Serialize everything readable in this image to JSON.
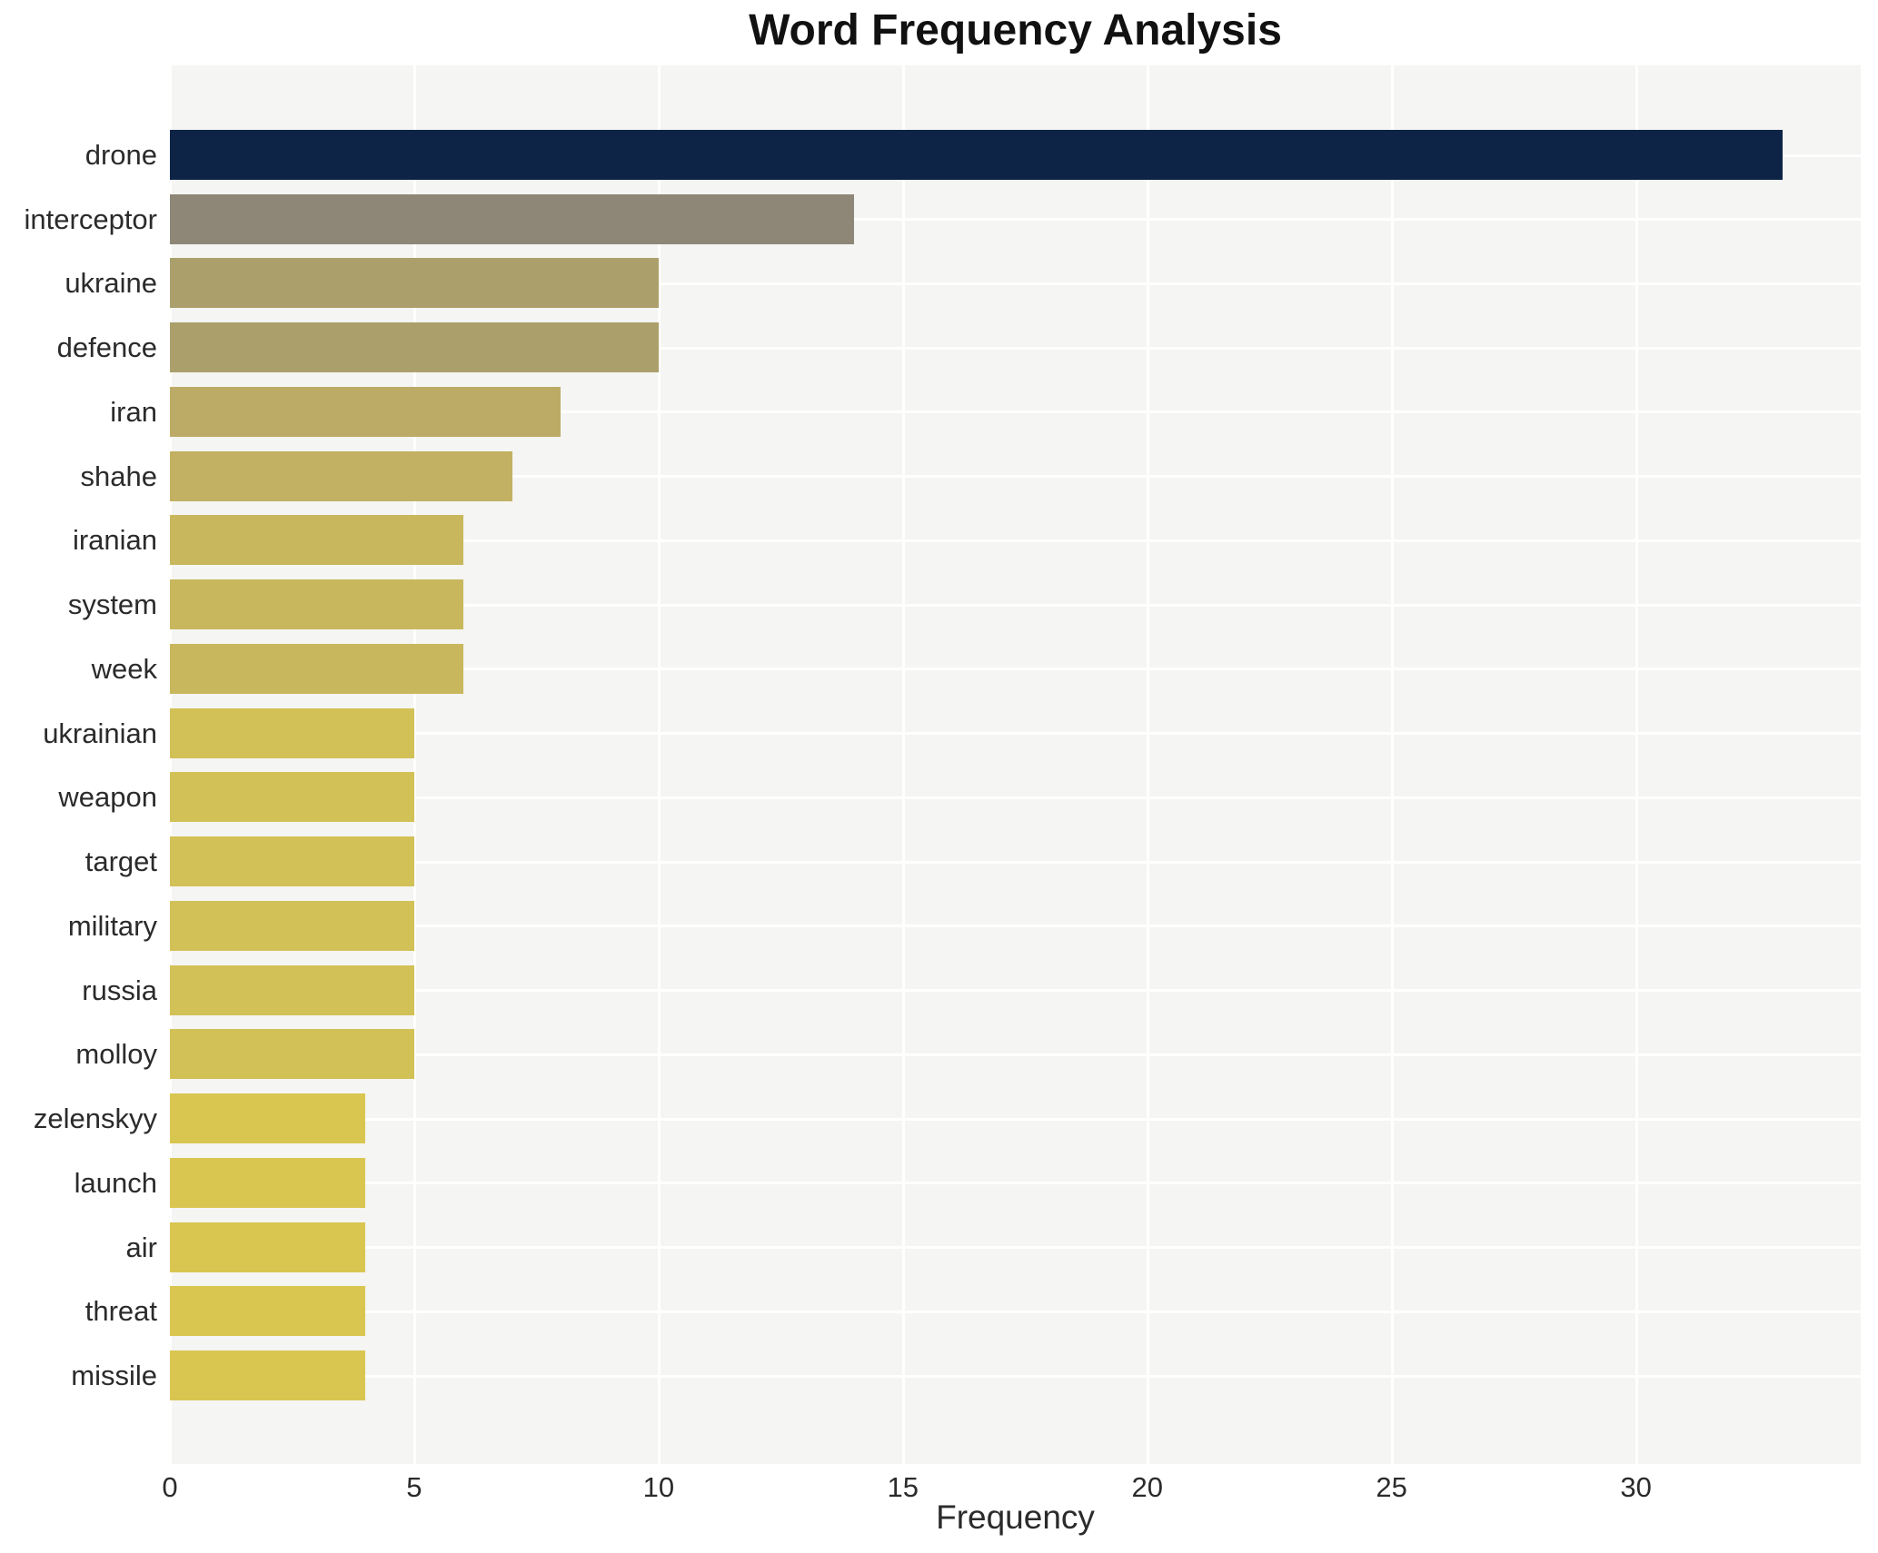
{
  "title": "Word Frequency Analysis",
  "axis": {
    "xlabel": "Frequency"
  },
  "chart_data": {
    "type": "bar",
    "orientation": "horizontal",
    "title": "Word Frequency Analysis",
    "xlabel": "Frequency",
    "ylabel": "",
    "categories": [
      "drone",
      "interceptor",
      "ukraine",
      "defence",
      "iran",
      "shahe",
      "iranian",
      "system",
      "week",
      "ukrainian",
      "weapon",
      "target",
      "military",
      "russia",
      "molloy",
      "zelenskyy",
      "launch",
      "air",
      "threat",
      "missile"
    ],
    "values": [
      33,
      14,
      10,
      10,
      8,
      7,
      6,
      6,
      6,
      5,
      5,
      5,
      5,
      5,
      5,
      4,
      4,
      4,
      4,
      4
    ],
    "bar_colors": [
      "#0d2446",
      "#8e8777",
      "#aba06b",
      "#aba06b",
      "#bcab66",
      "#c2b163",
      "#c9b75e",
      "#c9b75e",
      "#c9b75e",
      "#d2c156",
      "#d2c156",
      "#d2c156",
      "#d2c156",
      "#d2c156",
      "#d2c156",
      "#d9c651",
      "#d9c651",
      "#d9c651",
      "#d9c651",
      "#d9c651"
    ],
    "xticks": [
      0,
      5,
      10,
      15,
      20,
      25,
      30
    ],
    "xlim": [
      0,
      34.6
    ],
    "grid": true,
    "legend": false,
    "plot_bg_color": "#f5f5f3",
    "grid_color": "#ffffff",
    "title_color": "#111111",
    "label_color": "#2b2b2b"
  }
}
